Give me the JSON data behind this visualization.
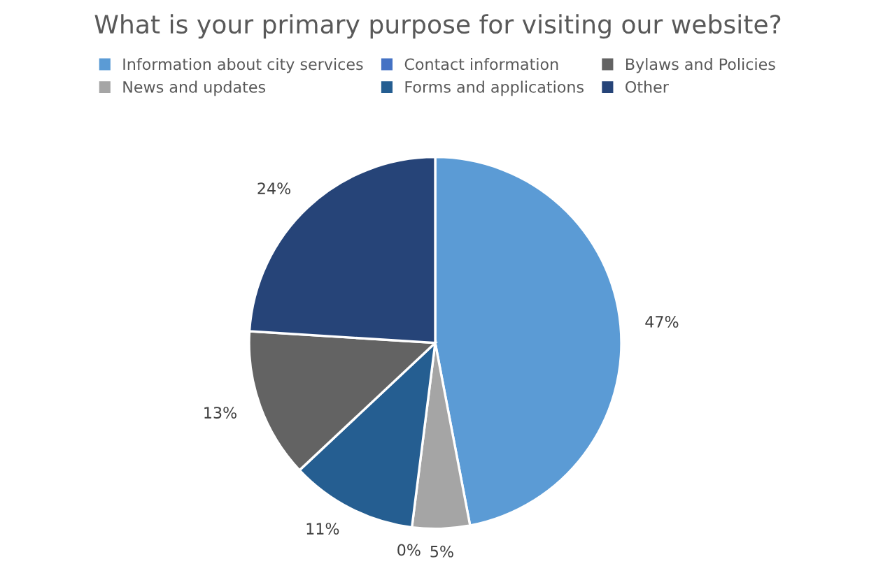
{
  "chart_data": {
    "type": "pie",
    "title": "What is your primary purpose for visiting our website?",
    "categories": [
      "Information about city services",
      "News and updates",
      "Contact information",
      "Forms and applications",
      "Bylaws and Policies",
      "Other"
    ],
    "values": [
      47,
      5,
      0,
      11,
      13,
      24
    ],
    "colors": [
      "#5b9bd5",
      "#a5a5a5",
      "#4472c4",
      "#255e91",
      "#636363",
      "#264478"
    ],
    "value_labels": [
      "47%",
      "5%",
      "0%",
      "11%",
      "13%",
      "24%"
    ],
    "legend": "top"
  }
}
